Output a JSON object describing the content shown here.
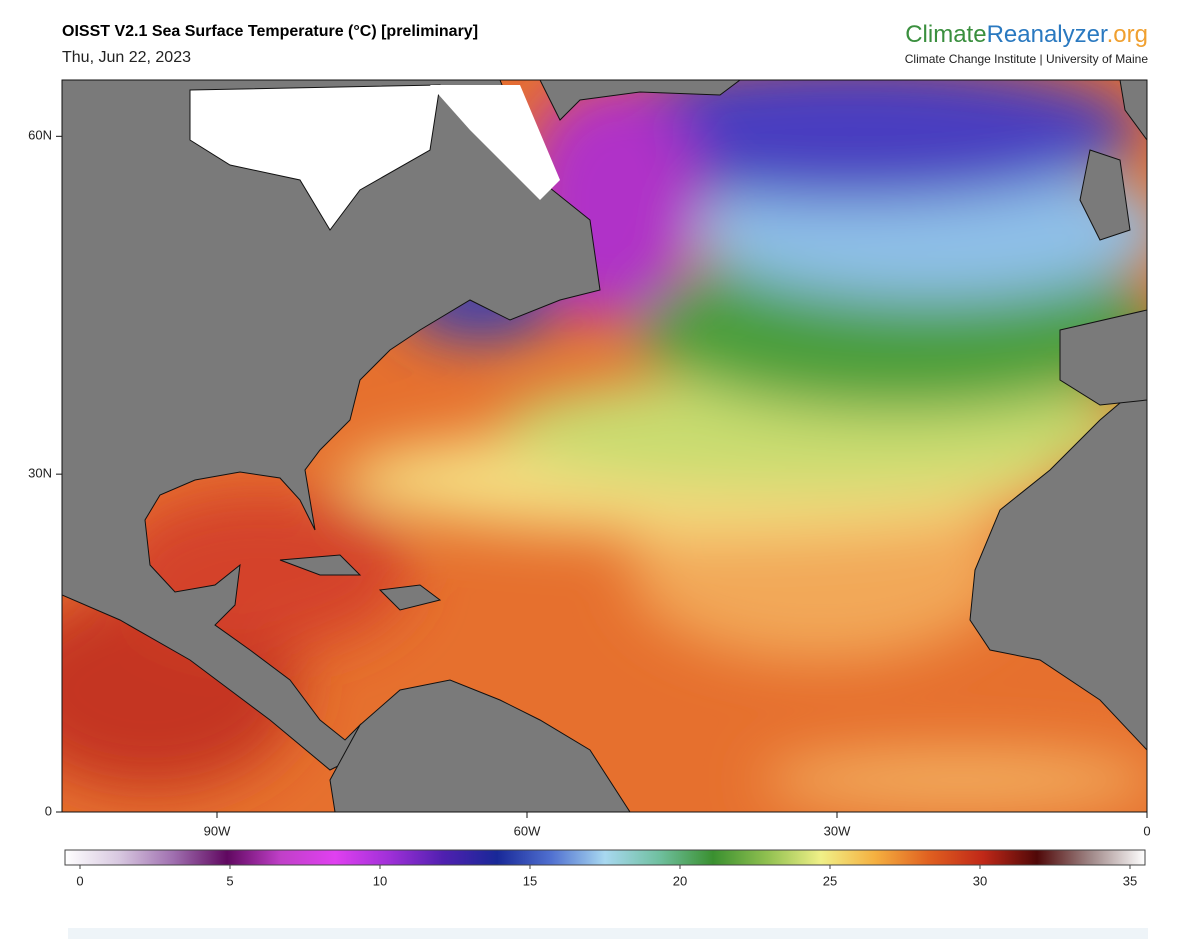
{
  "header": {
    "title": "OISST V2.1 Sea Surface Temperature (°C) [preliminary]",
    "date": "Thu, Jun 22, 2023"
  },
  "logo": {
    "part1": "Climate",
    "part2": "Reanalyzer",
    "part3": ".org",
    "subtitle": "Climate Change Institute | University of Maine"
  },
  "map": {
    "lat_range": [
      0,
      65
    ],
    "lon_range": [
      -105,
      0
    ],
    "lat_ticks": [
      {
        "value": 0,
        "label": "0"
      },
      {
        "value": 30,
        "label": "30N"
      },
      {
        "value": 60,
        "label": "60N"
      }
    ],
    "lon_ticks": [
      {
        "value": -90,
        "label": "90W"
      },
      {
        "value": -60,
        "label": "60W"
      },
      {
        "value": -30,
        "label": "30W"
      },
      {
        "value": 0,
        "label": "0"
      }
    ]
  },
  "colorbar": {
    "ticks": [
      0,
      5,
      10,
      15,
      20,
      25,
      30,
      35
    ],
    "colors": [
      "#ffffff",
      "#d8c8e0",
      "#a070b0",
      "#600860",
      "#c040c8",
      "#e040f0",
      "#a030d8",
      "#5020b0",
      "#182898",
      "#5070d0",
      "#a8d8f0",
      "#70c0a0",
      "#3a9030",
      "#90c050",
      "#f0f088",
      "#f5b040",
      "#e06020",
      "#c02818",
      "#500808",
      "#a08888",
      "#ffffff"
    ]
  }
}
